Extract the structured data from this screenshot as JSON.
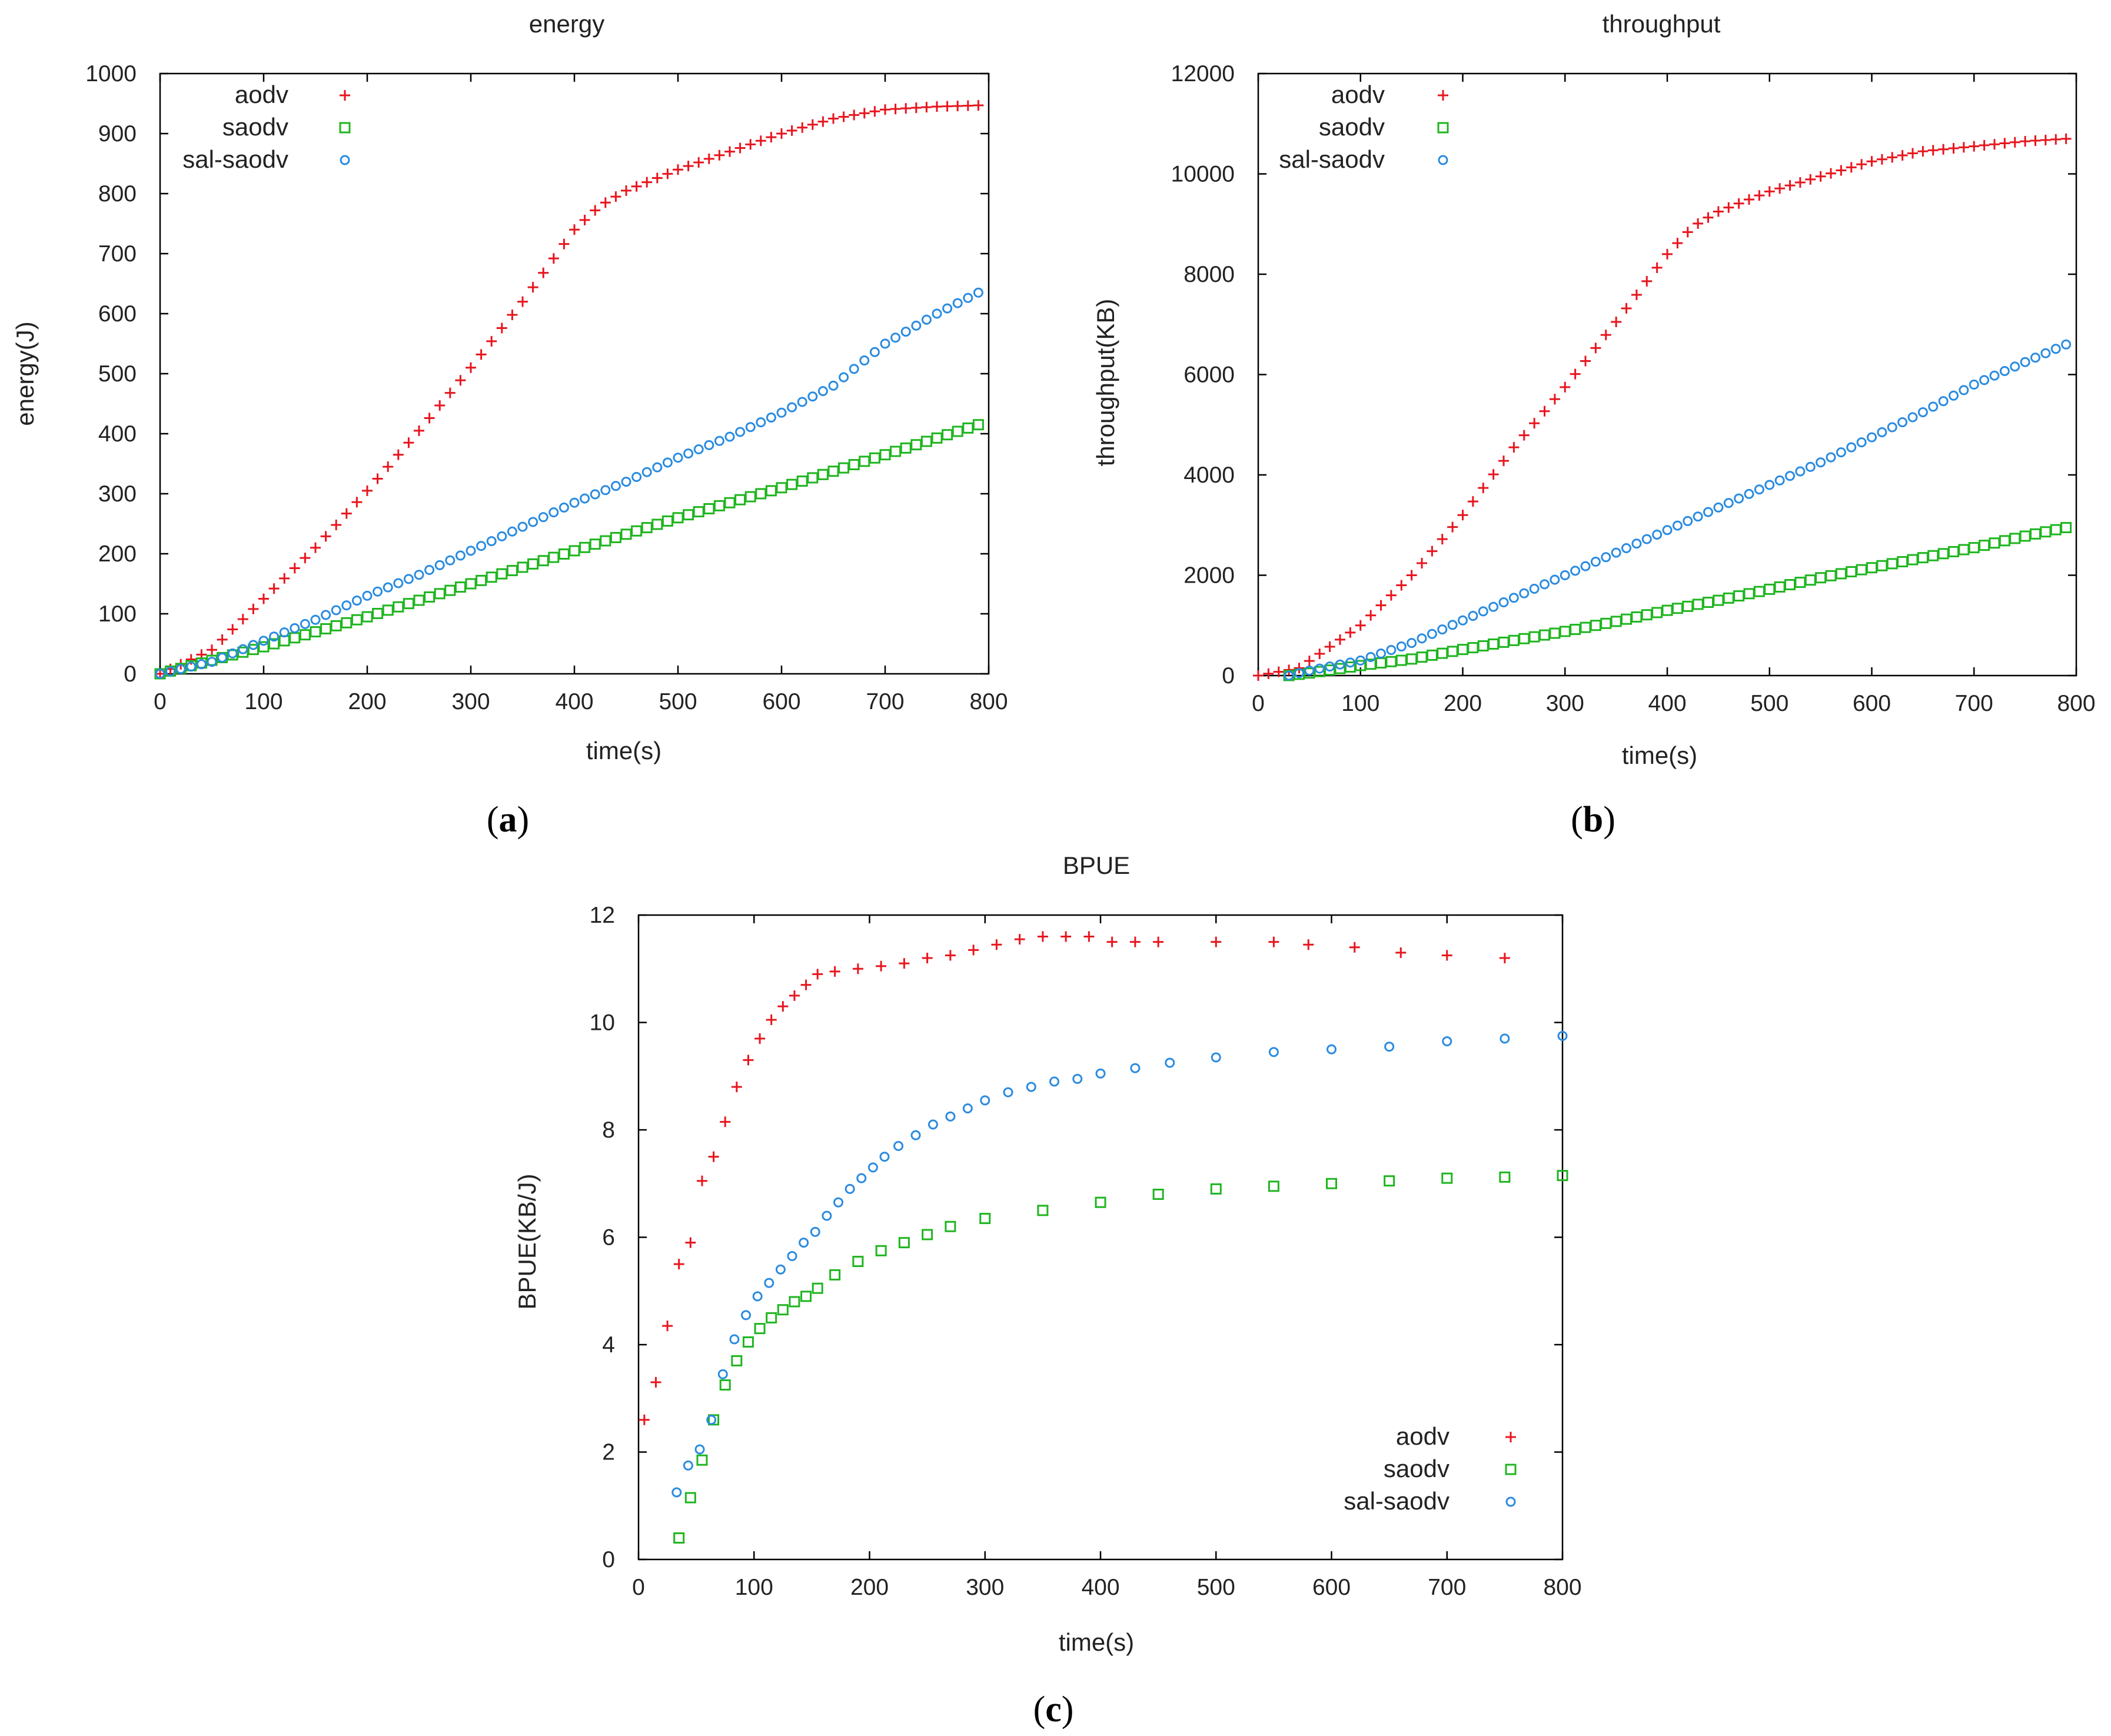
{
  "colors": {
    "aodv": "#e8151d",
    "saodv": "#1fb51f",
    "sal_saodv": "#2a8be0"
  },
  "chart_data": [
    {
      "id": "a",
      "type": "scatter",
      "title": "energy",
      "xlabel": "time(s)",
      "ylabel": "energy(J)",
      "xlim": [
        0,
        800
      ],
      "ylim": [
        0,
        1000
      ],
      "xticks": [
        "0",
        "100",
        "200",
        "300",
        "400",
        "500",
        "600",
        "700",
        "800"
      ],
      "yticks": [
        "0",
        "100",
        "200",
        "300",
        "400",
        "500",
        "600",
        "700",
        "800",
        "900",
        "1000"
      ],
      "legend_position": "top-left",
      "caption": {
        "paren_open": "(",
        "letter": "a",
        "paren_close": ")"
      },
      "series": [
        {
          "name": "aodv",
          "marker": "plus",
          "color": "aodv",
          "x": [
            0,
            50,
            100,
            150,
            200,
            250,
            300,
            350,
            400,
            425,
            450,
            500,
            550,
            600,
            650,
            700,
            750,
            790
          ],
          "y": [
            0,
            40,
            125,
            210,
            305,
            405,
            510,
            620,
            740,
            780,
            805,
            840,
            870,
            900,
            925,
            940,
            945,
            947
          ]
        },
        {
          "name": "saodv",
          "marker": "square",
          "color": "saodv",
          "x": [
            0,
            100,
            200,
            300,
            400,
            500,
            600,
            700,
            790
          ],
          "y": [
            0,
            45,
            95,
            150,
            205,
            260,
            310,
            365,
            415
          ]
        },
        {
          "name": "sal-saodv",
          "marker": "circle",
          "color": "sal_saodv",
          "x": [
            0,
            50,
            100,
            150,
            200,
            250,
            300,
            350,
            400,
            450,
            500,
            550,
            600,
            650,
            700,
            750,
            790
          ],
          "y": [
            0,
            20,
            55,
            90,
            130,
            165,
            205,
            245,
            285,
            320,
            360,
            395,
            435,
            480,
            550,
            600,
            635
          ]
        }
      ]
    },
    {
      "id": "b",
      "type": "scatter",
      "title": "throughput",
      "xlabel": "time(s)",
      "ylabel": "throughput(KB)",
      "xlim": [
        0,
        800
      ],
      "ylim": [
        0,
        12000
      ],
      "xticks": [
        "0",
        "100",
        "200",
        "300",
        "400",
        "500",
        "600",
        "700",
        "800"
      ],
      "yticks": [
        "0",
        "2000",
        "4000",
        "6000",
        "8000",
        "10000",
        "12000"
      ],
      "legend_position": "top-left",
      "caption": {
        "paren_open": "(",
        "letter": "b",
        "paren_close": ")"
      },
      "series": [
        {
          "name": "aodv",
          "marker": "plus",
          "color": "aodv",
          "x": [
            0,
            40,
            100,
            150,
            200,
            250,
            300,
            350,
            400,
            425,
            450,
            500,
            550,
            600,
            650,
            700,
            750,
            790
          ],
          "y": [
            0,
            150,
            1000,
            2000,
            3200,
            4550,
            5750,
            7050,
            8400,
            8950,
            9250,
            9650,
            9950,
            10250,
            10450,
            10550,
            10650,
            10700
          ]
        },
        {
          "name": "saodv",
          "marker": "square",
          "color": "saodv",
          "x": [
            30,
            50,
            100,
            150,
            200,
            250,
            300,
            350,
            400,
            450,
            500,
            550,
            600,
            650,
            700,
            750,
            790
          ],
          "y": [
            0,
            50,
            200,
            330,
            520,
            700,
            880,
            1080,
            1300,
            1500,
            1720,
            1950,
            2150,
            2350,
            2550,
            2780,
            2950
          ]
        },
        {
          "name": "sal-saodv",
          "marker": "circle",
          "color": "sal_saodv",
          "x": [
            30,
            50,
            100,
            150,
            200,
            250,
            300,
            350,
            400,
            450,
            500,
            550,
            600,
            650,
            700,
            750,
            790
          ],
          "y": [
            0,
            100,
            300,
            650,
            1100,
            1550,
            2000,
            2450,
            2900,
            3350,
            3800,
            4250,
            4750,
            5250,
            5800,
            6250,
            6600
          ]
        }
      ]
    },
    {
      "id": "c",
      "type": "scatter",
      "title": "BPUE",
      "xlabel": "time(s)",
      "ylabel": "BPUE(KB/J)",
      "xlim": [
        0,
        800
      ],
      "ylim": [
        0,
        12
      ],
      "xticks": [
        "0",
        "100",
        "200",
        "300",
        "400",
        "500",
        "600",
        "700",
        "800"
      ],
      "yticks": [
        "0",
        "2",
        "4",
        "6",
        "8",
        "10",
        "12"
      ],
      "legend_position": "bottom-right",
      "caption": {
        "paren_open": "(",
        "letter": "c",
        "paren_close": ")"
      },
      "series": [
        {
          "name": "aodv",
          "marker": "plus",
          "color": "aodv",
          "x": [
            5,
            15,
            25,
            35,
            45,
            55,
            65,
            75,
            85,
            95,
            105,
            115,
            125,
            135,
            145,
            155,
            170,
            190,
            210,
            230,
            250,
            270,
            290,
            310,
            330,
            350,
            370,
            390,
            410,
            430,
            450,
            500,
            550,
            580,
            620,
            660,
            700,
            750
          ],
          "y": [
            2.6,
            3.3,
            4.35,
            5.5,
            5.9,
            7.05,
            7.5,
            8.15,
            8.8,
            9.3,
            9.7,
            10.05,
            10.3,
            10.5,
            10.7,
            10.9,
            10.95,
            11.0,
            11.05,
            11.1,
            11.2,
            11.25,
            11.35,
            11.45,
            11.55,
            11.6,
            11.6,
            11.6,
            11.5,
            11.5,
            11.5,
            11.5,
            11.5,
            11.45,
            11.4,
            11.3,
            11.25,
            11.2
          ]
        },
        {
          "name": "saodv",
          "marker": "square",
          "color": "saodv",
          "x": [
            35,
            45,
            55,
            65,
            75,
            85,
            95,
            105,
            115,
            125,
            135,
            145,
            155,
            170,
            190,
            210,
            230,
            250,
            270,
            300,
            350,
            400,
            450,
            500,
            550,
            600,
            650,
            700,
            750,
            800
          ],
          "y": [
            0.4,
            1.15,
            1.85,
            2.6,
            3.25,
            3.7,
            4.05,
            4.3,
            4.5,
            4.65,
            4.8,
            4.9,
            5.05,
            5.3,
            5.55,
            5.75,
            5.9,
            6.05,
            6.2,
            6.35,
            6.5,
            6.65,
            6.8,
            6.9,
            6.95,
            7.0,
            7.05,
            7.1,
            7.12,
            7.15
          ]
        },
        {
          "name": "sal-saodv",
          "marker": "circle",
          "color": "sal_saodv",
          "x": [
            33,
            43,
            53,
            63,
            73,
            83,
            93,
            103,
            113,
            123,
            133,
            143,
            153,
            163,
            173,
            183,
            193,
            203,
            213,
            225,
            240,
            255,
            270,
            285,
            300,
            320,
            340,
            360,
            380,
            400,
            430,
            460,
            500,
            550,
            600,
            650,
            700,
            750,
            800
          ],
          "y": [
            1.25,
            1.75,
            2.05,
            2.6,
            3.45,
            4.1,
            4.55,
            4.9,
            5.15,
            5.4,
            5.65,
            5.9,
            6.1,
            6.4,
            6.65,
            6.9,
            7.1,
            7.3,
            7.5,
            7.7,
            7.9,
            8.1,
            8.25,
            8.4,
            8.55,
            8.7,
            8.8,
            8.9,
            8.95,
            9.05,
            9.15,
            9.25,
            9.35,
            9.45,
            9.5,
            9.55,
            9.65,
            9.7,
            9.75
          ]
        }
      ]
    }
  ]
}
